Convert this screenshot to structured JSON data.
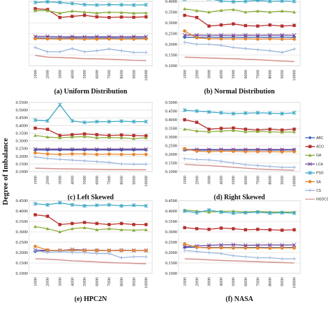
{
  "figure": {
    "ylabel": "Degree of Imbalance"
  },
  "series_styles": [
    {
      "name": "ABC",
      "color": "#3b63b5",
      "marker": "diamond"
    },
    {
      "name": "ACO",
      "color": "#b5302c",
      "marker": "square"
    },
    {
      "name": "GA",
      "color": "#8aad3b",
      "marker": "triangle"
    },
    {
      "name": "LCA",
      "color": "#6d3f94",
      "marker": "x"
    },
    {
      "name": "PSO",
      "color": "#3aa7c4",
      "marker": "star"
    },
    {
      "name": "SA",
      "color": "#e7862d",
      "marker": "circle"
    },
    {
      "name": "CS",
      "color": "#99b4dc",
      "marker": "plus"
    },
    {
      "name": "HGDCS",
      "color": "#d49590",
      "marker": "none"
    }
  ],
  "chart_data": [
    {
      "type": "line",
      "title": "(a) Uniform Distribution",
      "categories": [
        "1000",
        "2000",
        "3000",
        "4000",
        "5000",
        "6000",
        "7000",
        "8000",
        "9000",
        "10000"
      ],
      "y_ticks": [],
      "ylim": [
        0.1,
        0.4
      ],
      "series": [
        {
          "name": "ABC",
          "values": [
            0.23,
            0.229,
            0.229,
            0.23,
            0.229,
            0.23,
            0.23,
            0.229,
            0.23,
            0.229
          ]
        },
        {
          "name": "ACO",
          "values": [
            0.366,
            0.362,
            0.325,
            0.33,
            0.335,
            0.328,
            0.325,
            0.327,
            0.326,
            0.328
          ]
        },
        {
          "name": "GA",
          "values": [
            0.357,
            0.357,
            0.345,
            0.355,
            0.35,
            0.345,
            0.35,
            0.348,
            0.345,
            0.346
          ]
        },
        {
          "name": "LCA",
          "values": [
            0.237,
            0.237,
            0.235,
            0.236,
            0.235,
            0.236,
            0.236,
            0.235,
            0.236,
            0.236
          ]
        },
        {
          "name": "PSO",
          "values": [
            0.395,
            0.398,
            0.395,
            0.39,
            0.385,
            0.383,
            0.385,
            0.384,
            0.383,
            0.384
          ]
        },
        {
          "name": "SA",
          "values": [
            0.226,
            0.225,
            0.224,
            0.225,
            0.224,
            0.224,
            0.225,
            0.224,
            0.224,
            0.225
          ]
        },
        {
          "name": "CS",
          "values": [
            0.185,
            0.165,
            0.165,
            0.18,
            0.165,
            0.17,
            0.178,
            0.17,
            0.162,
            0.162
          ]
        },
        {
          "name": "HGDCS",
          "values": [
            0.148,
            0.14,
            0.138,
            0.136,
            0.133,
            0.132,
            0.13,
            0.128,
            0.125,
            0.124
          ]
        }
      ]
    },
    {
      "type": "line",
      "title": "(b) Normal Distribution",
      "categories": [
        "1000",
        "2000",
        "3000",
        "4000",
        "5000",
        "6000",
        "7000",
        "8000",
        "9000",
        "10000"
      ],
      "y_ticks": [
        "0.1000",
        "0.1500",
        "0.2000",
        "0.2500",
        "0.3000",
        "0.3500",
        "0.4000"
      ],
      "ylim": [
        0.1,
        0.4
      ],
      "series": [
        {
          "name": "ABC",
          "values": [
            0.232,
            0.232,
            0.233,
            0.232,
            0.233,
            0.232,
            0.233,
            0.232,
            0.233,
            0.232
          ]
        },
        {
          "name": "ACO",
          "values": [
            0.335,
            0.325,
            0.285,
            0.29,
            0.295,
            0.287,
            0.285,
            0.29,
            0.285,
            0.288
          ]
        },
        {
          "name": "GA",
          "values": [
            0.365,
            0.357,
            0.35,
            0.358,
            0.362,
            0.35,
            0.355,
            0.35,
            0.355,
            0.35
          ]
        },
        {
          "name": "LCA",
          "values": [
            0.243,
            0.243,
            0.242,
            0.243,
            0.242,
            0.243,
            0.242,
            0.243,
            0.243,
            0.242
          ]
        },
        {
          "name": "PSO",
          "values": [
            0.41,
            0.415,
            0.412,
            0.402,
            0.398,
            0.4,
            0.405,
            0.4,
            0.402,
            0.4
          ]
        },
        {
          "name": "SA",
          "values": [
            0.262,
            0.23,
            0.226,
            0.225,
            0.225,
            0.225,
            0.224,
            0.225,
            0.224,
            0.224
          ]
        },
        {
          "name": "CS",
          "values": [
            0.21,
            0.2,
            0.2,
            0.195,
            0.185,
            0.18,
            0.175,
            0.17,
            0.162,
            0.178
          ]
        },
        {
          "name": "HGDCS",
          "values": [
            0.14,
            0.138,
            0.136,
            0.134,
            0.133,
            0.13,
            0.128,
            0.125,
            0.122,
            0.12
          ]
        }
      ]
    },
    {
      "type": "line",
      "title": "(c) Left Skewed",
      "categories": [
        "1000",
        "2000",
        "3000",
        "4000",
        "5000",
        "6000",
        "7000",
        "8000",
        "9000",
        "10000"
      ],
      "y_ticks": [
        "0.1000",
        "0.1500",
        "0.2000",
        "0.2500",
        "0.3000",
        "0.3500",
        "0.4000",
        "0.4500",
        "0.5000",
        "0.5500"
      ],
      "ylim": [
        0.1,
        0.55
      ],
      "series": [
        {
          "name": "ABC",
          "values": [
            0.24,
            0.24,
            0.24,
            0.241,
            0.24,
            0.24,
            0.241,
            0.24,
            0.24,
            0.24
          ]
        },
        {
          "name": "ACO",
          "values": [
            0.383,
            0.375,
            0.335,
            0.34,
            0.345,
            0.34,
            0.335,
            0.338,
            0.335,
            0.333
          ]
        },
        {
          "name": "GA",
          "values": [
            0.335,
            0.325,
            0.32,
            0.325,
            0.328,
            0.32,
            0.322,
            0.32,
            0.315,
            0.32
          ]
        },
        {
          "name": "LCA",
          "values": [
            0.247,
            0.246,
            0.246,
            0.246,
            0.246,
            0.246,
            0.246,
            0.246,
            0.246,
            0.246
          ]
        },
        {
          "name": "PSO",
          "values": [
            0.435,
            0.43,
            0.535,
            0.43,
            0.42,
            0.425,
            0.425,
            0.428,
            0.425,
            0.425
          ]
        },
        {
          "name": "SA",
          "values": [
            0.222,
            0.215,
            0.212,
            0.215,
            0.215,
            0.212,
            0.214,
            0.212,
            0.212,
            0.212
          ]
        },
        {
          "name": "CS",
          "values": [
            0.195,
            0.185,
            0.18,
            0.175,
            0.17,
            0.165,
            0.16,
            0.15,
            0.148,
            0.148
          ]
        },
        {
          "name": "HGDCS",
          "values": [
            0.122,
            0.12,
            0.118,
            0.117,
            0.116,
            0.115,
            0.114,
            0.113,
            0.112,
            0.112
          ]
        }
      ]
    },
    {
      "type": "line",
      "title": "(d) Right Skewed",
      "categories": [
        "1000",
        "2000",
        "3000",
        "4000",
        "5000",
        "6000",
        "7000",
        "8000",
        "9000",
        "10000"
      ],
      "y_ticks": [
        "0.1000",
        "0.1500",
        "0.2000",
        "0.2500",
        "0.3000",
        "0.3500",
        "0.4000",
        "0.4500",
        "0.5000"
      ],
      "ylim": [
        0.1,
        0.5
      ],
      "series": [
        {
          "name": "ABC",
          "values": [
            0.225,
            0.224,
            0.224,
            0.225,
            0.224,
            0.224,
            0.225,
            0.224,
            0.224,
            0.225
          ]
        },
        {
          "name": "ACO",
          "values": [
            0.4,
            0.385,
            0.345,
            0.35,
            0.352,
            0.345,
            0.34,
            0.345,
            0.34,
            0.345
          ]
        },
        {
          "name": "GA",
          "values": [
            0.345,
            0.335,
            0.33,
            0.335,
            0.338,
            0.33,
            0.332,
            0.33,
            0.328,
            0.33
          ]
        },
        {
          "name": "LCA",
          "values": [
            0.228,
            0.228,
            0.228,
            0.228,
            0.228,
            0.228,
            0.228,
            0.228,
            0.228,
            0.228
          ]
        },
        {
          "name": "PSO",
          "values": [
            0.455,
            0.45,
            0.445,
            0.44,
            0.435,
            0.438,
            0.44,
            0.438,
            0.435,
            0.44
          ]
        },
        {
          "name": "SA",
          "values": [
            0.232,
            0.218,
            0.215,
            0.218,
            0.217,
            0.215,
            0.215,
            0.215,
            0.214,
            0.215
          ]
        },
        {
          "name": "CS",
          "values": [
            0.175,
            0.17,
            0.168,
            0.16,
            0.15,
            0.14,
            0.135,
            0.13,
            0.125,
            0.125
          ]
        },
        {
          "name": "HGDCS",
          "values": [
            0.142,
            0.138,
            0.135,
            0.13,
            0.125,
            0.12,
            0.115,
            0.112,
            0.11,
            0.108
          ]
        }
      ]
    },
    {
      "type": "line",
      "title": "(e) HPC2N",
      "categories": [
        "1000",
        "2000",
        "3000",
        "4000",
        "5000",
        "6000",
        "7000",
        "8000",
        "9000",
        "10000"
      ],
      "y_ticks": [
        "0.1000",
        "0.1500",
        "0.2000",
        "0.2500",
        "0.3000",
        "0.3500",
        "0.4000",
        "0.4500"
      ],
      "ylim": [
        0.1,
        0.45
      ],
      "series": [
        {
          "name": "ABC",
          "values": [
            0.205,
            0.21,
            0.21,
            0.21,
            0.21,
            0.212,
            0.21,
            0.21,
            0.21,
            0.21
          ]
        },
        {
          "name": "ACO",
          "values": [
            0.382,
            0.375,
            0.335,
            0.34,
            0.345,
            0.34,
            0.335,
            0.34,
            0.335,
            0.335
          ]
        },
        {
          "name": "GA",
          "values": [
            0.325,
            0.315,
            0.3,
            0.315,
            0.32,
            0.31,
            0.315,
            0.31,
            0.308,
            0.31
          ]
        },
        {
          "name": "LCA",
          "values": [
            0.212,
            0.21,
            0.21,
            0.215,
            0.212,
            0.21,
            0.21,
            0.212,
            0.21,
            0.21
          ]
        },
        {
          "name": "PSO",
          "values": [
            0.435,
            0.43,
            0.44,
            0.43,
            0.425,
            0.428,
            0.43,
            0.425,
            0.428,
            0.425
          ]
        },
        {
          "name": "SA",
          "values": [
            0.23,
            0.212,
            0.21,
            0.212,
            0.21,
            0.21,
            0.21,
            0.21,
            0.21,
            0.21
          ]
        },
        {
          "name": "CS",
          "values": [
            0.21,
            0.2,
            0.205,
            0.2,
            0.2,
            0.195,
            0.195,
            0.175,
            0.18,
            0.18
          ]
        },
        {
          "name": "HGDCS",
          "values": [
            0.17,
            0.168,
            0.165,
            0.16,
            0.158,
            0.155,
            0.152,
            0.15,
            0.148,
            0.146
          ]
        }
      ]
    },
    {
      "type": "line",
      "title": "(f) NASA",
      "categories": [
        "1000",
        "2000",
        "3000",
        "4000",
        "5000",
        "6000",
        "7000",
        "8000",
        "9000",
        "10000"
      ],
      "y_ticks": [
        "0.1000",
        "0.1500",
        "0.2000",
        "0.2500",
        "0.3000",
        "0.3500",
        "0.4000",
        "0.4500"
      ],
      "ylim": [
        0.1,
        0.45
      ],
      "series": [
        {
          "name": "ABC",
          "values": [
            0.225,
            0.225,
            0.224,
            0.225,
            0.224,
            0.224,
            0.225,
            0.224,
            0.224,
            0.225
          ]
        },
        {
          "name": "ACO",
          "values": [
            0.32,
            0.315,
            0.312,
            0.318,
            0.315,
            0.31,
            0.312,
            0.31,
            0.308,
            0.31
          ]
        },
        {
          "name": "GA",
          "values": [
            0.405,
            0.4,
            0.395,
            0.398,
            0.4,
            0.395,
            0.398,
            0.395,
            0.395,
            0.395
          ]
        },
        {
          "name": "LCA",
          "values": [
            0.228,
            0.232,
            0.235,
            0.237,
            0.238,
            0.235,
            0.236,
            0.237,
            0.236,
            0.237
          ]
        },
        {
          "name": "PSO",
          "values": [
            0.4,
            0.392,
            0.405,
            0.395,
            0.39,
            0.392,
            0.395,
            0.39,
            0.392,
            0.39
          ]
        },
        {
          "name": "SA",
          "values": [
            0.242,
            0.225,
            0.222,
            0.223,
            0.222,
            0.222,
            0.222,
            0.221,
            0.222,
            0.222
          ]
        },
        {
          "name": "CS",
          "values": [
            0.21,
            0.205,
            0.2,
            0.195,
            0.185,
            0.18,
            0.175,
            0.175,
            0.17,
            0.17
          ]
        },
        {
          "name": "HGDCS",
          "values": [
            0.17,
            0.168,
            0.165,
            0.162,
            0.16,
            0.158,
            0.156,
            0.154,
            0.152,
            0.15
          ]
        }
      ]
    }
  ]
}
